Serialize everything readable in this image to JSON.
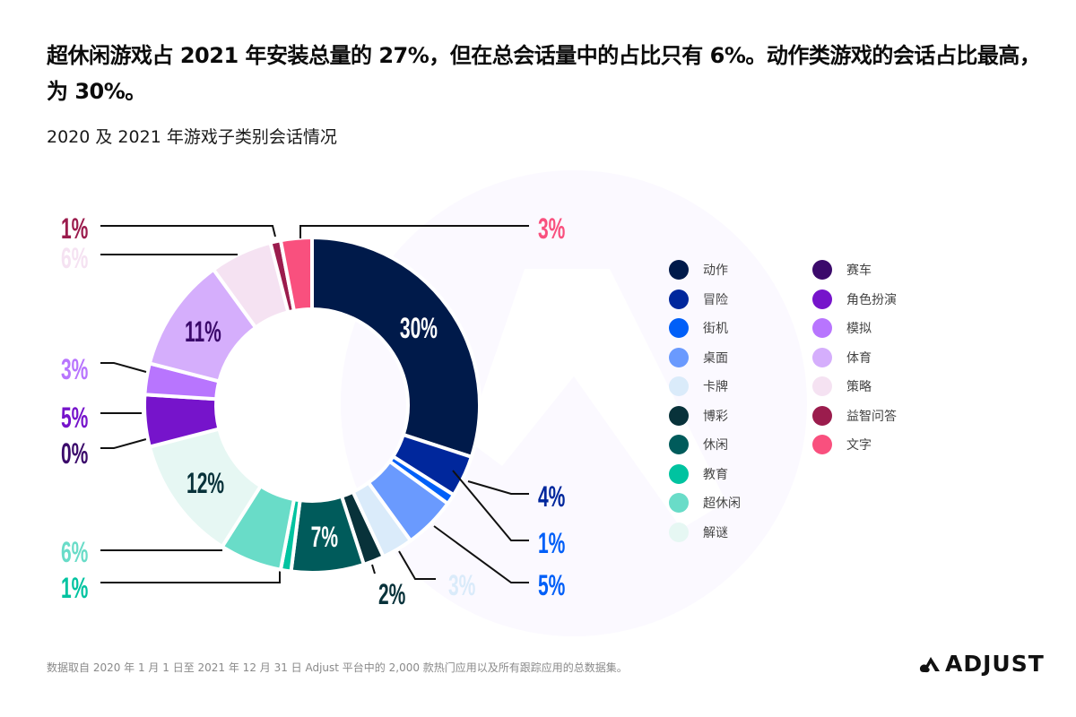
{
  "header": {
    "title": "超休闲游戏占 2021 年安装总量的 27%，但在总会话量中的占比只有 6%。动作类游戏的会话占比最高，为 30%。",
    "subtitle": "2020 及 2021 年游戏子类别会话情况"
  },
  "chart_data": {
    "type": "pie",
    "variant": "donut",
    "title": "2020 及 2021 年游戏子类别会话情况",
    "start_angle": "12 o'clock",
    "direction": "clockwise",
    "unit": "%",
    "slices": [
      {
        "label": "动作",
        "value": 30,
        "display": "30%",
        "color": "#001A4A",
        "label_pos": "inside",
        "text_color": "#ffffff"
      },
      {
        "label": "冒险",
        "value": 4,
        "display": "4%",
        "color": "#00279C",
        "label_pos": "outside-right",
        "text_color": "#00279C"
      },
      {
        "label": "街机",
        "value": 1,
        "display": "1%",
        "color": "#005FF8",
        "label_pos": "outside-right",
        "text_color": "#005FF8"
      },
      {
        "label": "桌面",
        "value": 5,
        "display": "5%",
        "color": "#6A9AFE",
        "label_pos": "outside-right",
        "text_color": "#005FF8"
      },
      {
        "label": "卡牌",
        "value": 3,
        "display": "3%",
        "color": "#DAEBFA",
        "label_pos": "outside-bottom",
        "text_color": "#DAEBFA"
      },
      {
        "label": "博彩",
        "value": 2,
        "display": "2%",
        "color": "#08323A",
        "label_pos": "outside-bottom",
        "text_color": "#08323A"
      },
      {
        "label": "休闲",
        "value": 7,
        "display": "7%",
        "color": "#005B5B",
        "label_pos": "inside",
        "text_color": "#ffffff"
      },
      {
        "label": "教育",
        "value": 1,
        "display": "1%",
        "color": "#00C3A0",
        "label_pos": "outside-left",
        "text_color": "#00C3A0"
      },
      {
        "label": "超休闲",
        "value": 6,
        "display": "6%",
        "color": "#69DCC8",
        "label_pos": "outside-left",
        "text_color": "#69DCC8"
      },
      {
        "label": "解谜",
        "value": 12,
        "display": "12%",
        "color": "#E6F7F3",
        "label_pos": "inside",
        "text_color": "#08323A"
      },
      {
        "label": "赛车",
        "value": 0,
        "display": "0%",
        "color": "#3B0A6B",
        "label_pos": "outside-left",
        "text_color": "#3B0A6B"
      },
      {
        "label": "角色扮演",
        "value": 5,
        "display": "5%",
        "color": "#7614CB",
        "label_pos": "outside-left",
        "text_color": "#7614CB"
      },
      {
        "label": "模拟",
        "value": 3,
        "display": "3%",
        "color": "#B875FE",
        "label_pos": "outside-left",
        "text_color": "#B875FE"
      },
      {
        "label": "体育",
        "value": 11,
        "display": "11%",
        "color": "#D5AEFC",
        "label_pos": "inside",
        "text_color": "#3B0A6B"
      },
      {
        "label": "策略",
        "value": 6,
        "display": "6%",
        "color": "#F5E2F2",
        "label_pos": "outside-left",
        "text_color": "#F5E2F2"
      },
      {
        "label": "益智问答",
        "value": 1,
        "display": "1%",
        "color": "#9B1C4D",
        "label_pos": "outside-left",
        "text_color": "#9B1C4D"
      },
      {
        "label": "文字",
        "value": 3,
        "display": "3%",
        "color": "#F9507E",
        "label_pos": "outside-top-right",
        "text_color": "#F9507E"
      }
    ],
    "legend": {
      "placement": "right",
      "columns": [
        [
          "动作",
          "冒险",
          "街机",
          "桌面",
          "卡牌",
          "博彩",
          "休闲",
          "教育",
          "超休闲",
          "解谜"
        ],
        [
          "赛车",
          "角色扮演",
          "模拟",
          "体育",
          "策略",
          "益智问答",
          "文字"
        ]
      ]
    }
  },
  "footer": {
    "note": "数据取自 2020 年 1 月 1 日至 2021 年 12 月 31 日 Adjust 平台中的 2,000 款热门应用以及所有跟踪应用的总数据集。",
    "brand": "ADJUST"
  }
}
